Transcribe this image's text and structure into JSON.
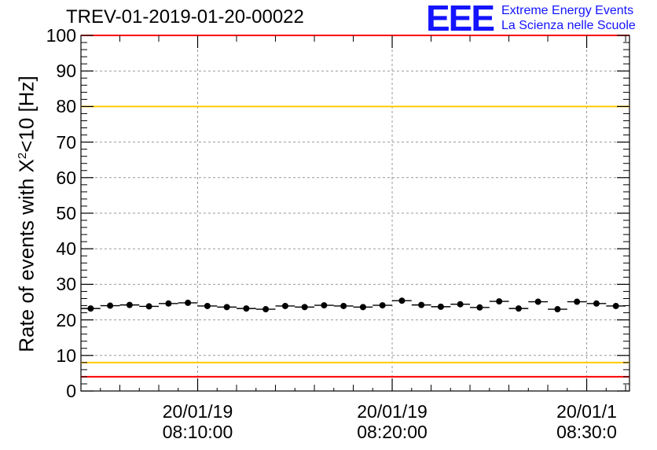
{
  "header": {
    "run_title": "TREV-01-2019-01-20-00022"
  },
  "logo": {
    "mark": "EEE",
    "line1": "Extreme Energy Events",
    "line2": "La Scienza nelle Scuole"
  },
  "chart_data": {
    "type": "scatter",
    "title": "TREV-01-2019-01-20-00022",
    "ylabel_prefix": "Rate of events with X",
    "ylabel_sup": "2",
    "ylabel_suffix": "<10 [Hz]",
    "xlabel": "",
    "ylim": [
      0,
      100
    ],
    "xlim_minutes": [
      4.0,
      32.2
    ],
    "grid": true,
    "y_ticks": [
      "0",
      "10",
      "20",
      "30",
      "40",
      "50",
      "60",
      "70",
      "80",
      "90",
      "100"
    ],
    "x_ticks": [
      {
        "minute": 10,
        "date": "20/01/19",
        "time": "08:10:00"
      },
      {
        "minute": 20,
        "date": "20/01/19",
        "time": "08:20:00"
      },
      {
        "minute": 30,
        "date": "20/01/1",
        "time": "08:30:0"
      }
    ],
    "reference_lines": [
      {
        "name": "upper-red-limit",
        "y": 100,
        "color": "#ff0000"
      },
      {
        "name": "upper-yellow-limit",
        "y": 80,
        "color": "#ffcc00"
      },
      {
        "name": "lower-yellow-limit",
        "y": 8,
        "color": "#ffcc00"
      },
      {
        "name": "lower-red-limit",
        "y": 4,
        "color": "#ff0000"
      }
    ],
    "series": [
      {
        "name": "rate",
        "color": "#000000",
        "x_minutes": [
          4.5,
          5.5,
          6.5,
          7.5,
          8.5,
          9.5,
          10.5,
          11.5,
          12.5,
          13.5,
          14.5,
          15.5,
          16.5,
          17.5,
          18.5,
          19.5,
          20.5,
          21.5,
          22.5,
          23.5,
          24.5,
          25.5,
          26.5,
          27.5,
          28.5,
          29.5,
          30.5,
          31.5
        ],
        "values": [
          23.2,
          24.0,
          24.2,
          23.8,
          24.6,
          24.8,
          23.9,
          23.6,
          23.2,
          23.0,
          23.9,
          23.6,
          24.1,
          23.9,
          23.6,
          24.1,
          25.4,
          24.2,
          23.7,
          24.4,
          23.5,
          25.2,
          23.2,
          25.1,
          23.0,
          25.1,
          24.6,
          23.9
        ]
      }
    ]
  }
}
